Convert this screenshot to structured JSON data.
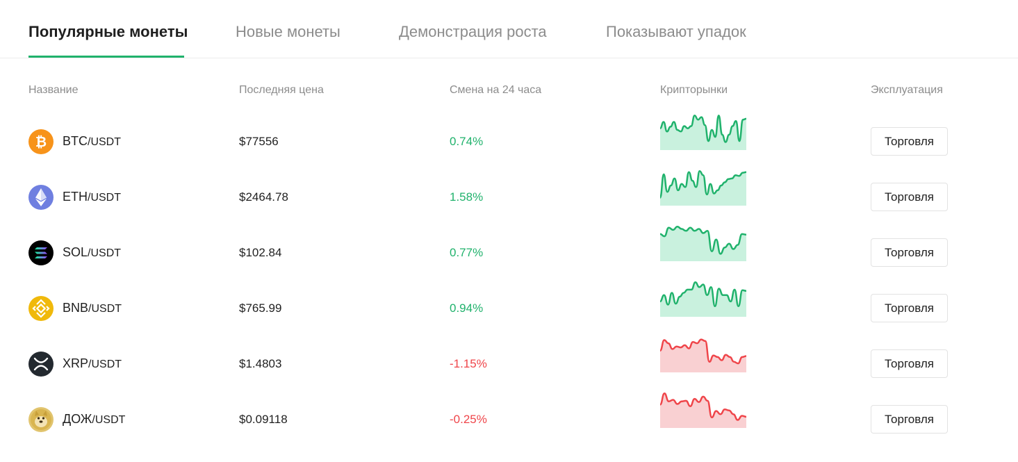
{
  "tabs": [
    {
      "label": "Популярные монеты"
    },
    {
      "label": "Новые монеты"
    },
    {
      "label": "Демонстрация роста"
    },
    {
      "label": "Показывают упадок"
    }
  ],
  "columns": {
    "name": "Название",
    "last_price": "Последняя цена",
    "change_24h": "Смена на 24 часа",
    "markets": "Крипторынки",
    "action": "Эксплуатация"
  },
  "colors": {
    "accent": "#20b26c",
    "up": "#20b26c",
    "down": "#ef454a",
    "up_fill": "#c9f1de",
    "down_fill": "#f9d0d2"
  },
  "rows": [
    {
      "base": "BTC",
      "quote": "/USDT",
      "price": "$77556",
      "change": "0.74%",
      "direction": "up",
      "icon": "bitcoin-icon",
      "trade_label": "Торговля",
      "spark": [
        0.55,
        0.75,
        0.45,
        0.6,
        0.75,
        0.5,
        0.45,
        0.62,
        0.55,
        0.62,
        0.95,
        0.82,
        0.9,
        0.65,
        0.15,
        0.5,
        0.28,
        0.95,
        0.35,
        0.12,
        0.35,
        0.62,
        0.78,
        0.15,
        0.82,
        0.85
      ]
    },
    {
      "base": "ETH",
      "quote": "/USDT",
      "price": "$2464.78",
      "change": "1.58%",
      "direction": "up",
      "icon": "ethereum-icon",
      "trade_label": "Торговля",
      "spark": [
        0.12,
        0.85,
        0.3,
        0.5,
        0.72,
        0.35,
        0.55,
        0.45,
        0.92,
        0.65,
        0.45,
        0.95,
        0.82,
        0.22,
        0.55,
        0.25,
        0.35,
        0.5,
        0.6,
        0.7,
        0.72,
        0.82,
        0.8,
        0.9,
        0.92
      ]
    },
    {
      "base": "SOL",
      "quote": "/USDT",
      "price": "$102.84",
      "change": "0.77%",
      "direction": "up",
      "icon": "solana-icon",
      "trade_label": "Торговля",
      "spark": [
        0.72,
        0.65,
        0.92,
        0.85,
        0.95,
        0.88,
        0.82,
        0.92,
        0.82,
        0.88,
        0.75,
        0.82,
        0.18,
        0.55,
        0.1,
        0.3,
        0.42,
        0.25,
        0.38,
        0.72,
        0.7
      ]
    },
    {
      "base": "BNB",
      "quote": "/USDT",
      "price": "$765.99",
      "change": "0.94%",
      "direction": "up",
      "icon": "bnb-icon",
      "trade_label": "Торговля",
      "spark": [
        0.35,
        0.55,
        0.25,
        0.62,
        0.28,
        0.5,
        0.62,
        0.72,
        0.72,
        0.95,
        0.8,
        0.88,
        0.55,
        0.8,
        0.2,
        0.75,
        0.55,
        0.55,
        0.35,
        0.72,
        0.2,
        0.7,
        0.68
      ]
    },
    {
      "base": "XRP",
      "quote": "/USDT",
      "price": "$1.4803",
      "change": "-1.15%",
      "direction": "down",
      "icon": "xrp-icon",
      "trade_label": "Торговля",
      "spark": [
        0.55,
        0.88,
        0.78,
        0.6,
        0.68,
        0.65,
        0.72,
        0.62,
        0.82,
        0.78,
        0.9,
        0.85,
        0.2,
        0.4,
        0.35,
        0.25,
        0.42,
        0.35,
        0.2,
        0.15,
        0.35,
        0.38
      ]
    },
    {
      "base": "ДОЖ",
      "quote": "/USDT",
      "price": "$0.09118",
      "change": "-0.25%",
      "direction": "down",
      "icon": "dogecoin-icon",
      "trade_label": "Торговля",
      "spark": [
        0.6,
        0.95,
        0.7,
        0.75,
        0.62,
        0.7,
        0.72,
        0.55,
        0.78,
        0.68,
        0.85,
        0.72,
        0.2,
        0.4,
        0.3,
        0.45,
        0.42,
        0.3,
        0.12,
        0.25,
        0.22
      ]
    }
  ]
}
